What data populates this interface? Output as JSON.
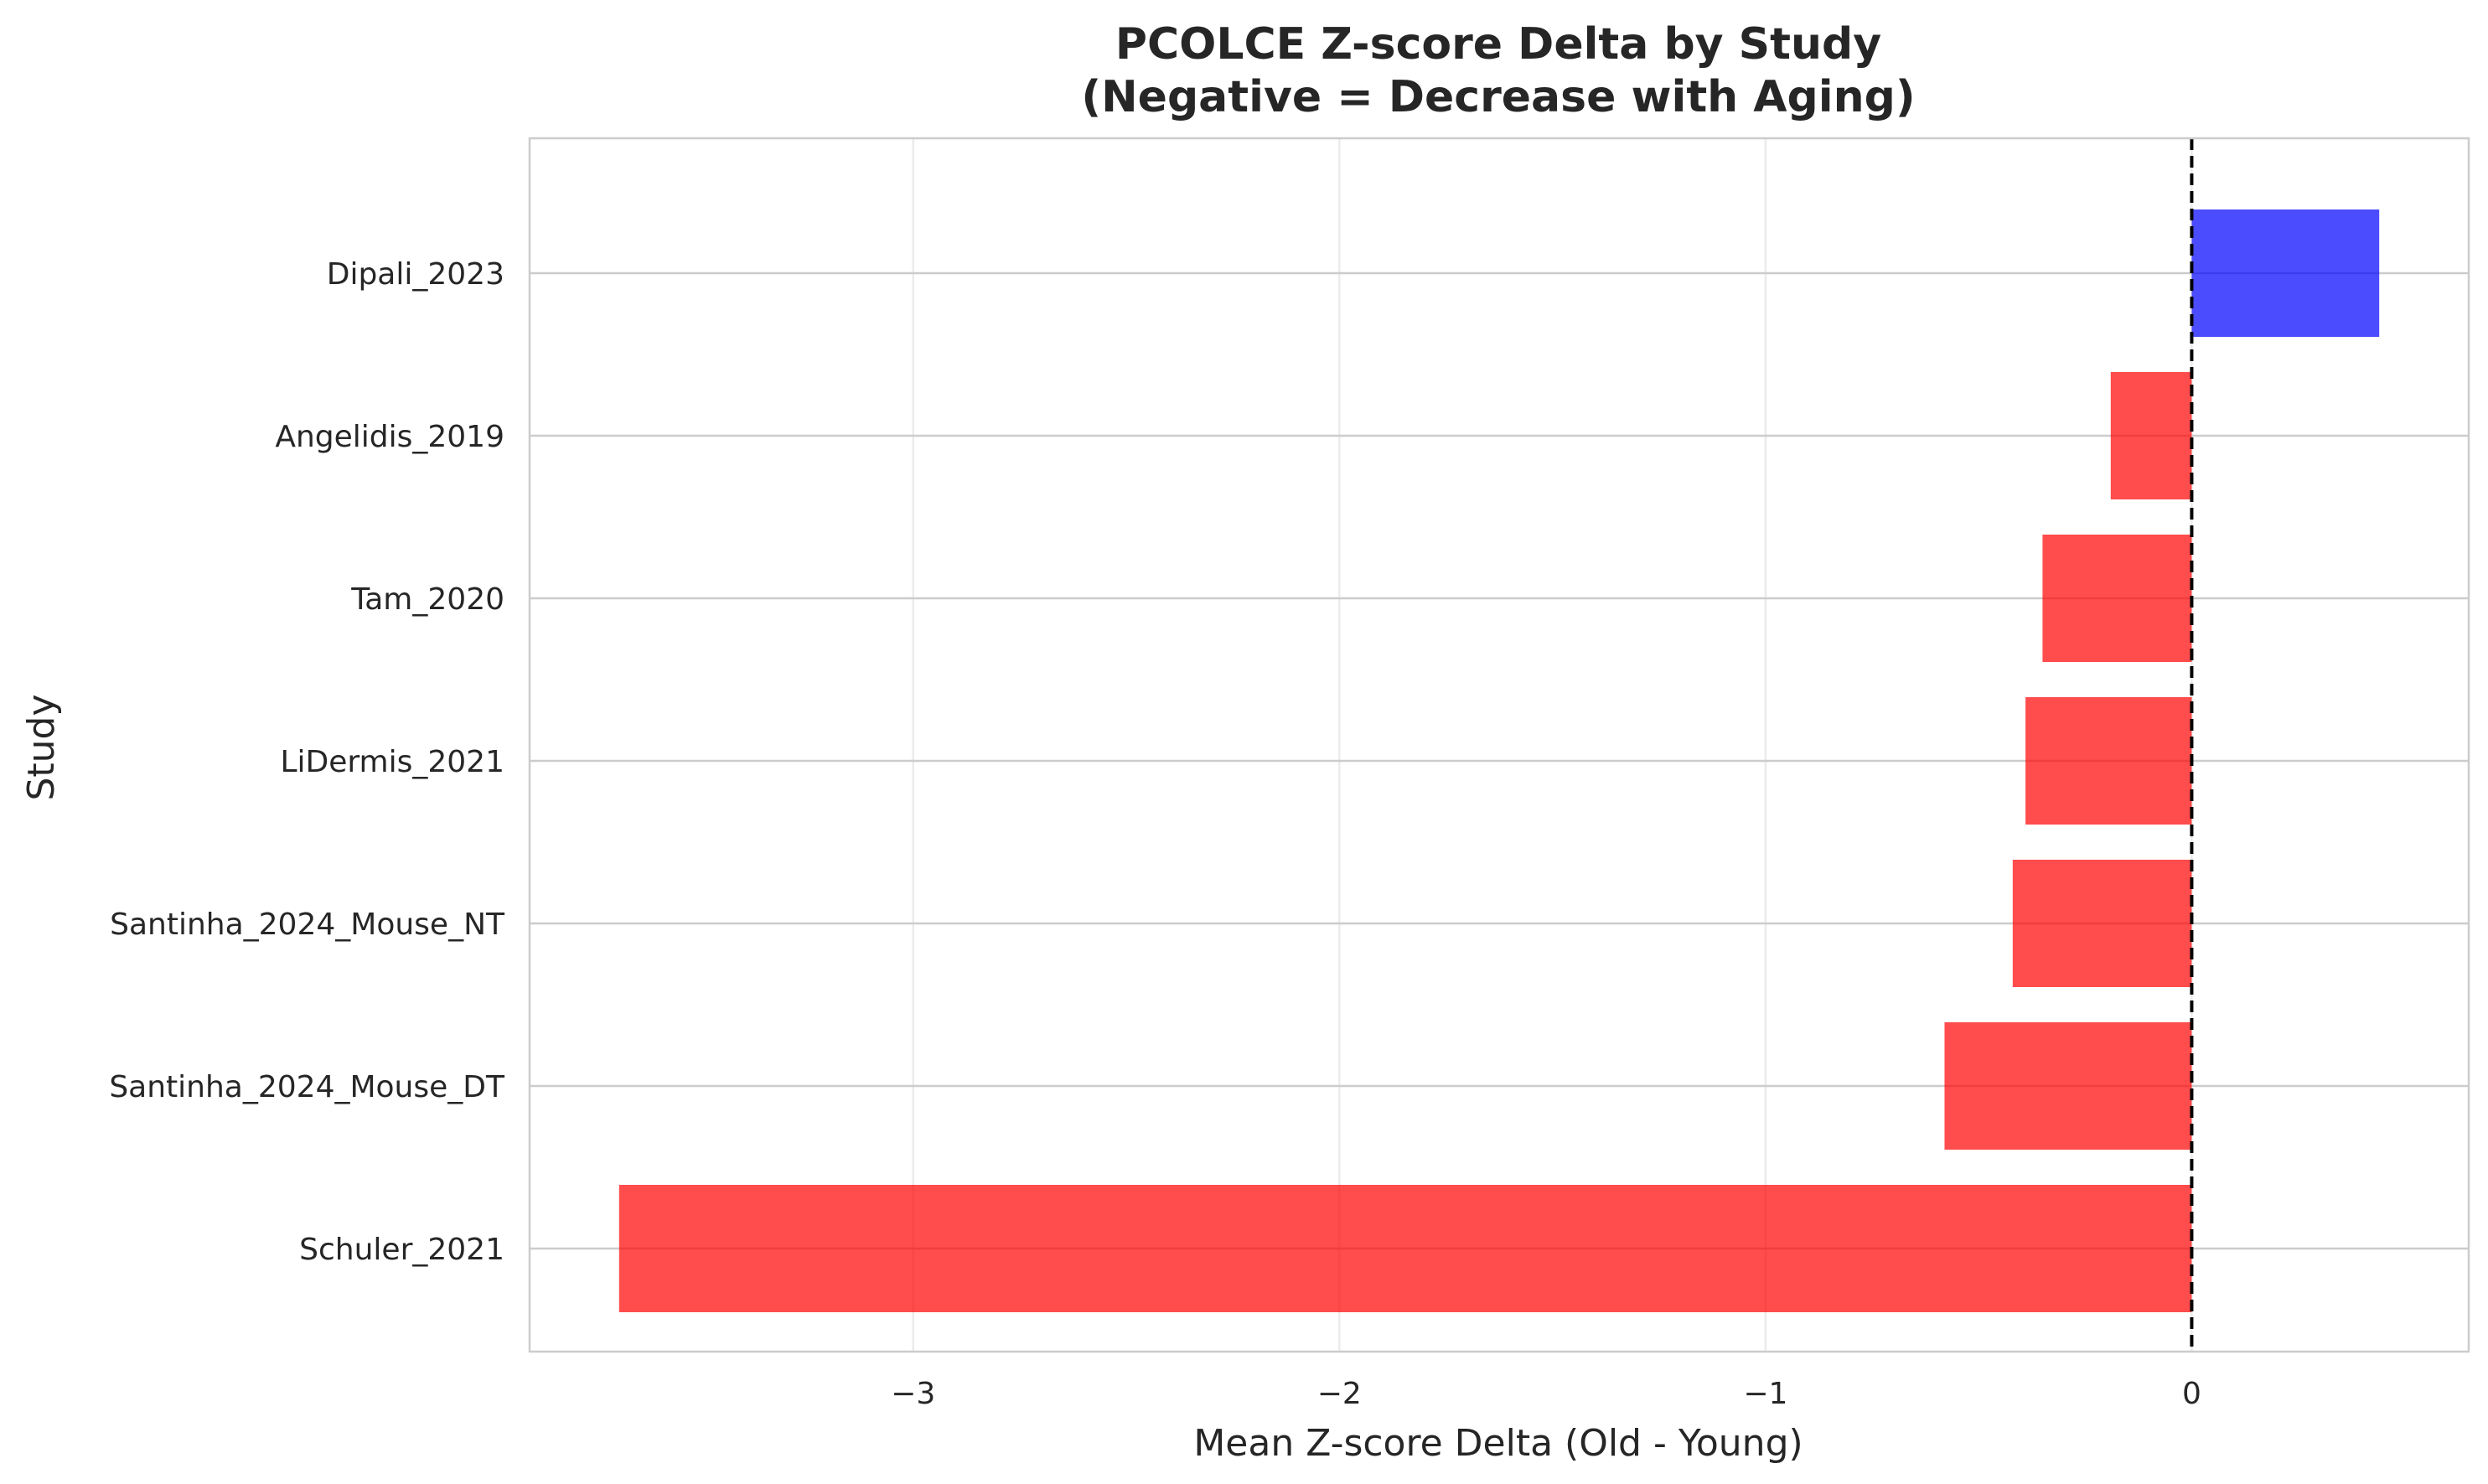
{
  "chart_data": {
    "type": "bar",
    "orientation": "horizontal",
    "title_lines": [
      "PCOLCE Z-score Delta by Study",
      "(Negative = Decrease with Aging)"
    ],
    "xlabel": "Mean Z-score Delta (Old - Young)",
    "ylabel": "Study",
    "categories": [
      "Dipali_2023",
      "Angelidis_2019",
      "Tam_2020",
      "LiDermis_2021",
      "Santinha_2024_Mouse_NT",
      "Santinha_2024_Mouse_DT",
      "Schuler_2021"
    ],
    "values": [
      0.44,
      -0.19,
      -0.35,
      -0.39,
      -0.42,
      -0.58,
      -3.69
    ],
    "xticks": [
      -3,
      -2,
      -1,
      0
    ],
    "xtick_labels": [
      "−3",
      "−2",
      "−1",
      "0"
    ],
    "xlim": [
      -3.9,
      0.65
    ],
    "grid": true,
    "reference_line": {
      "x": 0,
      "style": "dashed",
      "color": "#000000"
    },
    "colors": {
      "positive": "#0000ff",
      "negative": "#ff0000",
      "bar_opacity": 0.7
    }
  }
}
